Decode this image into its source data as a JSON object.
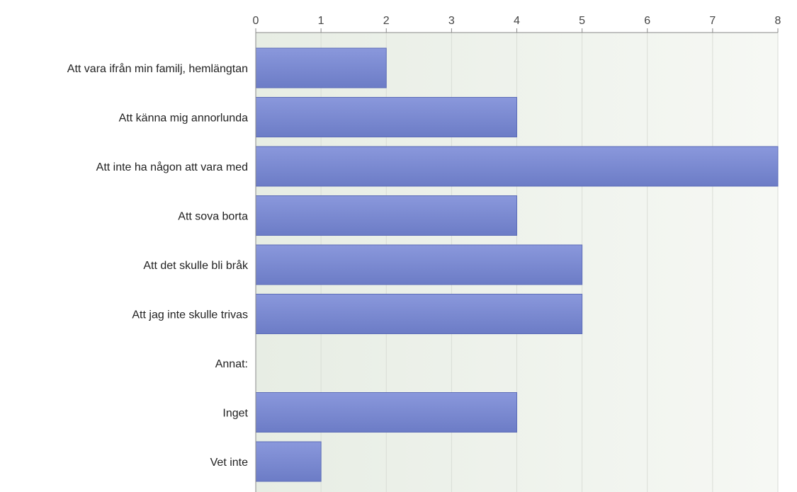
{
  "chart_data": {
    "type": "bar",
    "orientation": "horizontal",
    "categories": [
      "Att vara ifrån min familj, hemlängtan",
      "Att känna mig annorlunda",
      "Att inte ha någon att vara med",
      "Att sova borta",
      "Att det skulle bli bråk",
      "Att jag inte skulle trivas",
      "Annat:",
      "Inget",
      "Vet inte"
    ],
    "values": [
      2,
      4,
      8,
      4,
      5,
      5,
      0,
      4,
      1
    ],
    "xlim": [
      0,
      8
    ],
    "xticks": [
      "0",
      "1",
      "2",
      "3",
      "4",
      "5",
      "6",
      "7",
      "8"
    ],
    "axis_position": "top",
    "grid": true,
    "legend": "none",
    "colors": {
      "bar_top": "#8a98dc",
      "bar_bottom": "#6c7cc6",
      "bar_edge": "#5d6db8",
      "plot_bg_left": "#e7ede4",
      "plot_bg_right": "#f6f8f4",
      "grid": "#d9ddd6",
      "axis": "#888888"
    }
  }
}
